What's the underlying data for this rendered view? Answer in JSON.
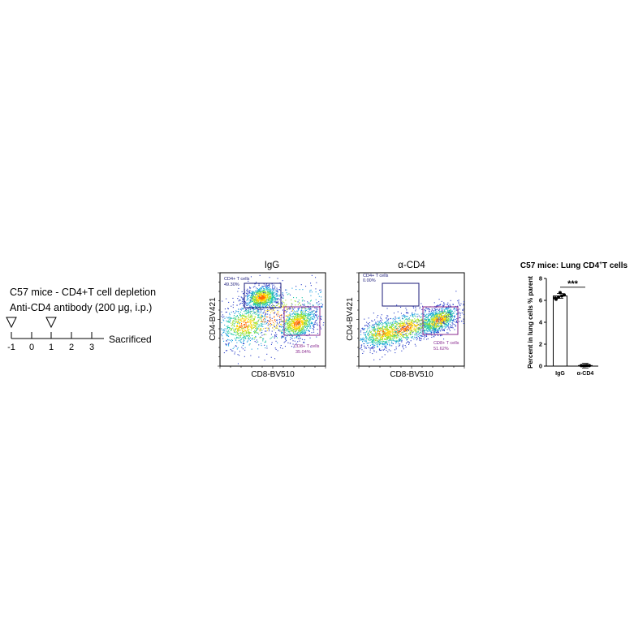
{
  "timeline": {
    "title_line1": "C57 mice - CD4+T cell depletion",
    "title_line2": "Anti-CD4 antibody (200 μg, i.p.)",
    "ticks": [
      "-1",
      "0",
      "1",
      "2",
      "3"
    ],
    "injection_days": [
      "-1",
      "1"
    ],
    "end_label": "Sacrificed"
  },
  "flow_plots": [
    {
      "title": "IgG",
      "xlabel": "CD8-BV510",
      "ylabel": "CD4-BV421",
      "gates": [
        {
          "name": "CD4+ T cells",
          "percent": "49.30%",
          "color": "#1b1b7a"
        },
        {
          "name": "CD8+ T cells",
          "percent": "35.04%",
          "color": "#8a2b8f"
        }
      ]
    },
    {
      "title": "α-CD4",
      "xlabel": "CD8-BV510",
      "ylabel": "CD4-BV421",
      "gates": [
        {
          "name": "CD4+ T cells",
          "percent": "0.00%",
          "color": "#1b1b7a"
        },
        {
          "name": "CD8+ T cells",
          "percent": "51.62%",
          "color": "#8a2b8f"
        }
      ]
    }
  ],
  "chart_data": {
    "type": "bar",
    "title_main": "C57 mice: Lung CD4",
    "title_sup": "+",
    "title_end": "T cells",
    "categories": [
      "IgG",
      "α-CD4"
    ],
    "values": [
      6.4,
      0.05
    ],
    "points": [
      [
        6.1,
        6.3,
        6.4,
        6.5,
        6.7,
        6.2
      ],
      [
        0.05,
        0.04,
        0.06,
        0.05,
        0.05
      ]
    ],
    "ylabel": "Percent in lung cells  % parent",
    "ylim": [
      0,
      8
    ],
    "yticks": [
      "0",
      "2",
      "4",
      "6",
      "8"
    ],
    "significance": "***"
  }
}
